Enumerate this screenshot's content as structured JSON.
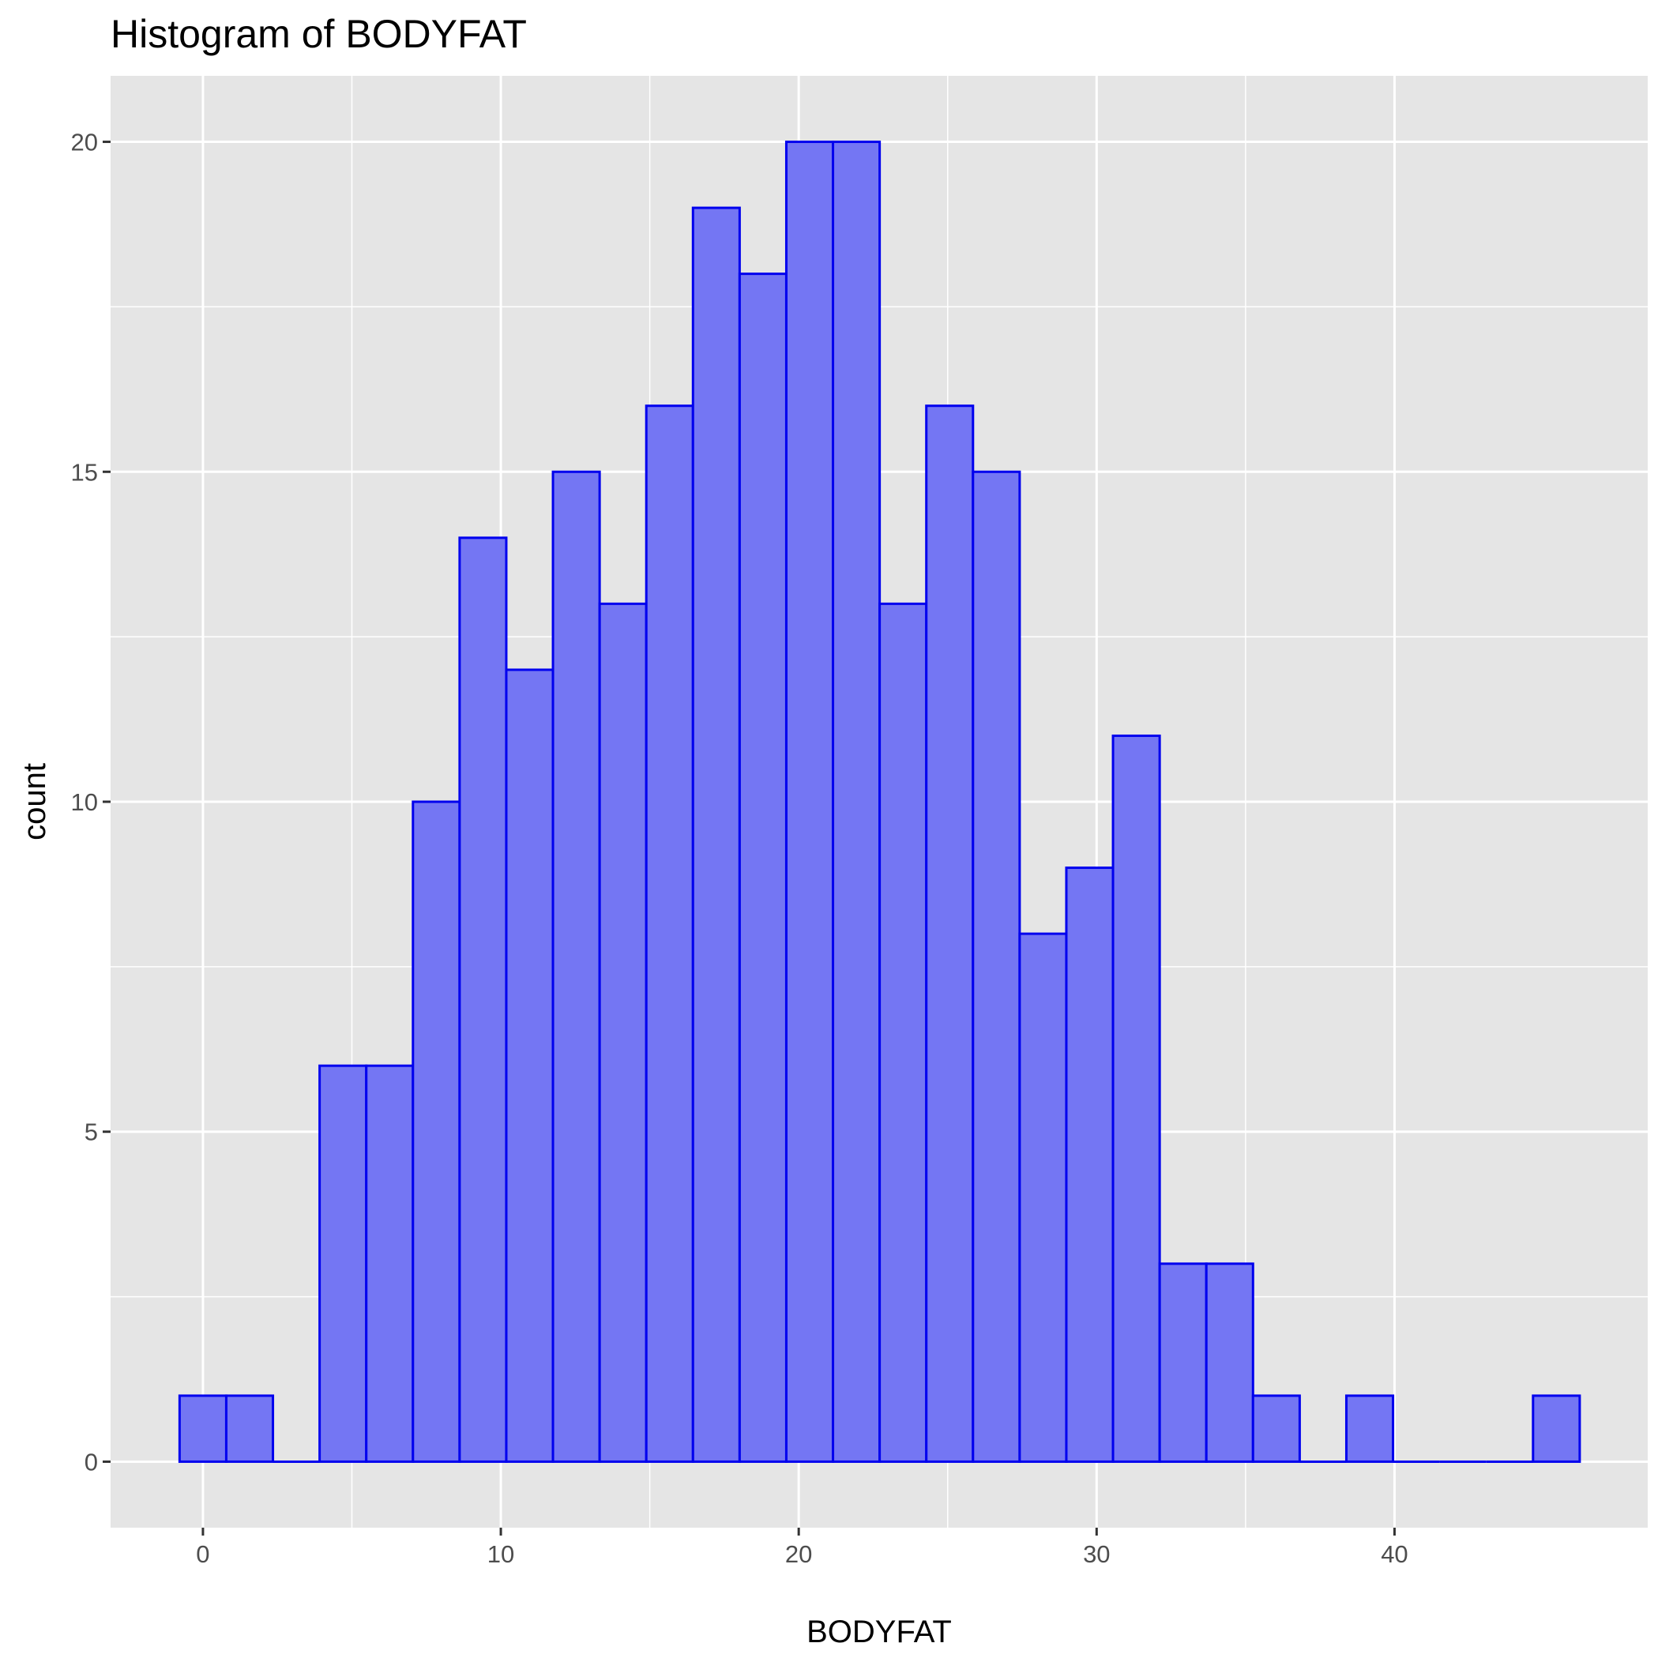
{
  "chart_data": {
    "type": "bar",
    "title": "Histogram of BODYFAT",
    "xlabel": "BODYFAT",
    "ylabel": "count",
    "bin_width": 1.5666667,
    "bins": [
      {
        "x0": -0.78333,
        "x1": 0.78333,
        "count": 1
      },
      {
        "x0": 0.78333,
        "x1": 2.35,
        "count": 1
      },
      {
        "x0": 2.35,
        "x1": 3.91667,
        "count": 0
      },
      {
        "x0": 3.91667,
        "x1": 5.48333,
        "count": 6
      },
      {
        "x0": 5.48333,
        "x1": 7.05,
        "count": 6
      },
      {
        "x0": 7.05,
        "x1": 8.61667,
        "count": 10
      },
      {
        "x0": 8.61667,
        "x1": 10.18333,
        "count": 14
      },
      {
        "x0": 10.18333,
        "x1": 11.75,
        "count": 12
      },
      {
        "x0": 11.75,
        "x1": 13.31667,
        "count": 15
      },
      {
        "x0": 13.31667,
        "x1": 14.88333,
        "count": 13
      },
      {
        "x0": 14.88333,
        "x1": 16.45,
        "count": 16
      },
      {
        "x0": 16.45,
        "x1": 18.01667,
        "count": 19
      },
      {
        "x0": 18.01667,
        "x1": 19.58333,
        "count": 18
      },
      {
        "x0": 19.58333,
        "x1": 21.15,
        "count": 20
      },
      {
        "x0": 21.15,
        "x1": 22.71667,
        "count": 20
      },
      {
        "x0": 22.71667,
        "x1": 24.28333,
        "count": 13
      },
      {
        "x0": 24.28333,
        "x1": 25.85,
        "count": 16
      },
      {
        "x0": 25.85,
        "x1": 27.41667,
        "count": 15
      },
      {
        "x0": 27.41667,
        "x1": 28.98333,
        "count": 8
      },
      {
        "x0": 28.98333,
        "x1": 30.55,
        "count": 9
      },
      {
        "x0": 30.55,
        "x1": 32.11667,
        "count": 11
      },
      {
        "x0": 32.11667,
        "x1": 33.68333,
        "count": 3
      },
      {
        "x0": 33.68333,
        "x1": 35.25,
        "count": 3
      },
      {
        "x0": 35.25,
        "x1": 36.81667,
        "count": 1
      },
      {
        "x0": 36.81667,
        "x1": 38.38333,
        "count": 0
      },
      {
        "x0": 38.38333,
        "x1": 39.95,
        "count": 1
      },
      {
        "x0": 39.95,
        "x1": 41.51667,
        "count": 0
      },
      {
        "x0": 41.51667,
        "x1": 43.08333,
        "count": 0
      },
      {
        "x0": 43.08333,
        "x1": 44.65,
        "count": 0
      },
      {
        "x0": 44.65,
        "x1": 46.21667,
        "count": 1
      }
    ],
    "x_ticks": [
      "0",
      "10",
      "20",
      "30",
      "40"
    ],
    "y_ticks": [
      "0",
      "5",
      "10",
      "15",
      "20"
    ],
    "xlim": [
      -3.1,
      48.5
    ],
    "ylim": [
      -1.0,
      21.0
    ],
    "grid": true,
    "colors": {
      "fill": "#7476f3",
      "outline": "#0000ee",
      "panel": "#e5e5e5",
      "grid": "#ffffff"
    }
  }
}
